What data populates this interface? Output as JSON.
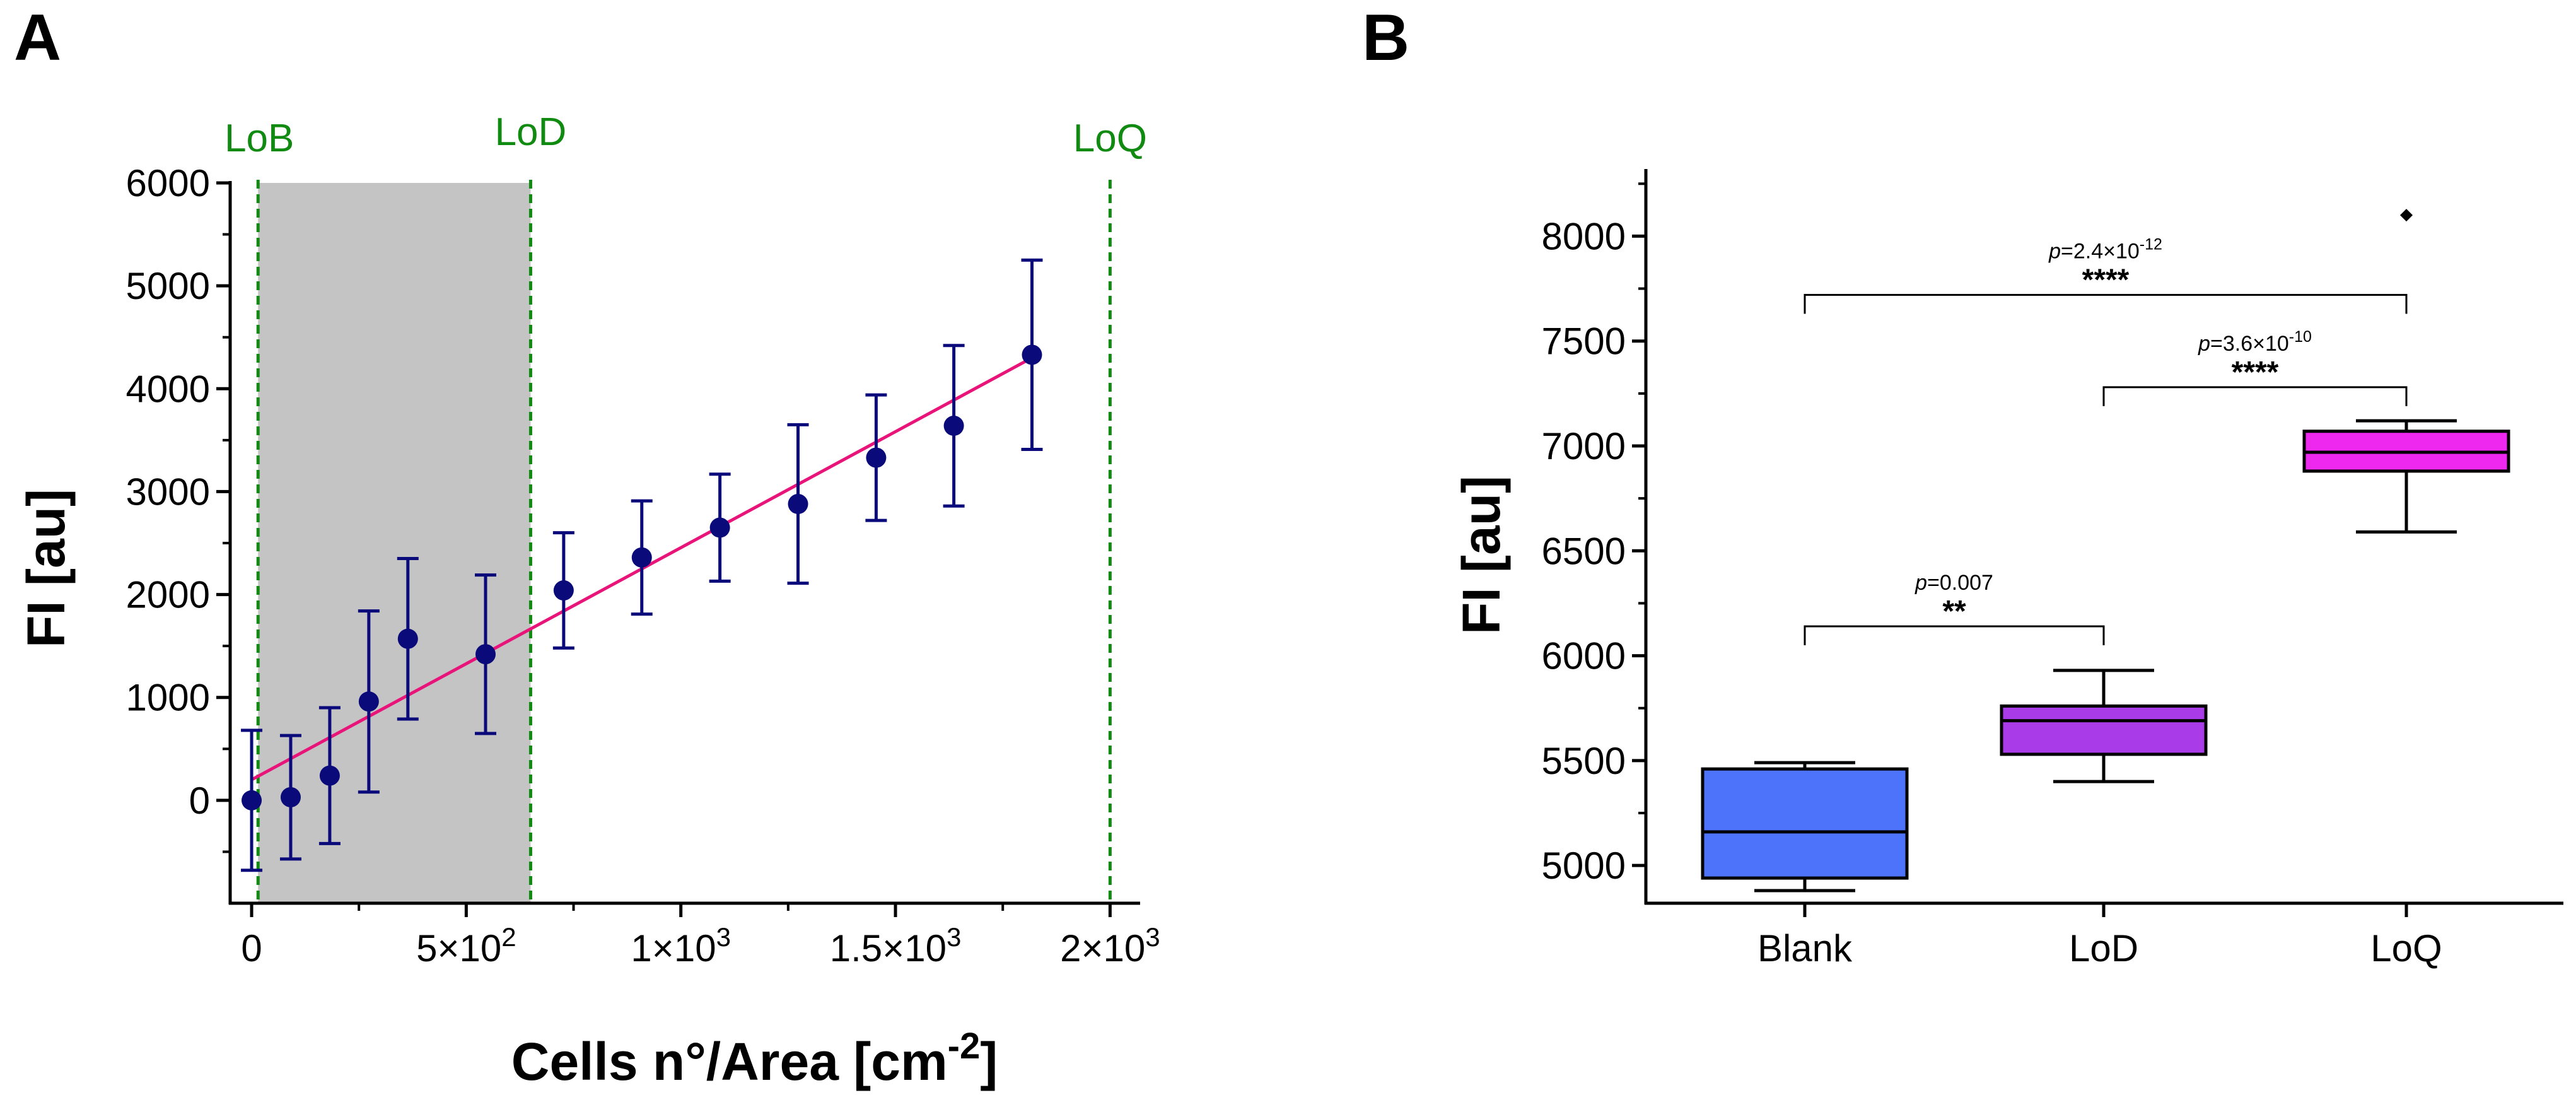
{
  "chart_data": [
    {
      "panel": "A",
      "type": "scatter",
      "xlabel": "Cells n°/Area [cm",
      "xlabel_sup": "-2",
      "xlabel_end": "]",
      "ylabel": "FI [au]",
      "xlim": [
        -50,
        2070
      ],
      "ylim": [
        -1000,
        6000
      ],
      "xticks": [
        {
          "value": 0,
          "mant": "0",
          "exp": ""
        },
        {
          "value": 500,
          "mant": "5×10",
          "exp": "2"
        },
        {
          "value": 1000,
          "mant": "1×10",
          "exp": "3"
        },
        {
          "value": 1500,
          "mant": "1.5×10",
          "exp": "3"
        },
        {
          "value": 2000,
          "mant": "2×10",
          "exp": "3"
        }
      ],
      "yticks": [
        0,
        1000,
        2000,
        3000,
        4000,
        5000,
        6000
      ],
      "points": [
        {
          "x": 0,
          "y": 0,
          "err": 680
        },
        {
          "x": 91,
          "y": 30,
          "err": 600
        },
        {
          "x": 182,
          "y": 240,
          "err": 660
        },
        {
          "x": 273,
          "y": 960,
          "err": 880
        },
        {
          "x": 364,
          "y": 1570,
          "err": 780
        },
        {
          "x": 545,
          "y": 1420,
          "err": 770
        },
        {
          "x": 727,
          "y": 2040,
          "err": 560
        },
        {
          "x": 909,
          "y": 2360,
          "err": 550
        },
        {
          "x": 1091,
          "y": 2650,
          "err": 520
        },
        {
          "x": 1273,
          "y": 2880,
          "err": 770
        },
        {
          "x": 1455,
          "y": 3330,
          "err": 610
        },
        {
          "x": 1636,
          "y": 3640,
          "err": 780
        },
        {
          "x": 1818,
          "y": 4330,
          "err": 920
        }
      ],
      "fit_line": {
        "x": [
          0,
          1818
        ],
        "y": [
          200,
          4300
        ]
      },
      "limits": [
        {
          "name": "LoB",
          "x": 15
        },
        {
          "name": "LoD",
          "x": 650
        },
        {
          "name": "LoQ",
          "x": 2000
        }
      ],
      "shaded_range": [
        15,
        650
      ],
      "colors": {
        "points": "#0a0a7a",
        "fit": "#e8147a",
        "limits": "#118a11",
        "shade": "#c4c4c4"
      }
    },
    {
      "panel": "B",
      "type": "box",
      "ylabel": "FI [au]",
      "ylim": [
        4820,
        8320
      ],
      "yticks": [
        5000,
        5500,
        6000,
        6500,
        7000,
        7500,
        8000
      ],
      "categories": [
        "Blank",
        "LoD",
        "LoQ"
      ],
      "boxes": [
        {
          "name": "Blank",
          "min": 4880,
          "q1": 4940,
          "median": 5160,
          "q3": 5460,
          "max": 5490,
          "outliers": [],
          "color": "#4d73fa"
        },
        {
          "name": "LoD",
          "min": 5400,
          "q1": 5530,
          "median": 5690,
          "q3": 5760,
          "max": 5930,
          "outliers": [],
          "color": "#a93ce8"
        },
        {
          "name": "LoQ",
          "min": 6590,
          "q1": 6880,
          "median": 6970,
          "q3": 7070,
          "max": 7120,
          "outliers": [
            8100
          ],
          "color": "#ee28ee"
        }
      ],
      "comparisons": [
        {
          "from": "Blank",
          "to": "LoQ",
          "stars": "****",
          "p_prefix": "p",
          "p_value": "=2.4×10",
          "p_exp": "-12",
          "level": 7720
        },
        {
          "from": "LoD",
          "to": "LoQ",
          "stars": "****",
          "p_prefix": "p",
          "p_value": "=3.6×10",
          "p_exp": "-10",
          "level": 7280
        },
        {
          "from": "Blank",
          "to": "LoD",
          "stars": "**",
          "p_prefix": "p",
          "p_value": "=0.007",
          "p_exp": "",
          "level": 6140
        }
      ]
    }
  ]
}
